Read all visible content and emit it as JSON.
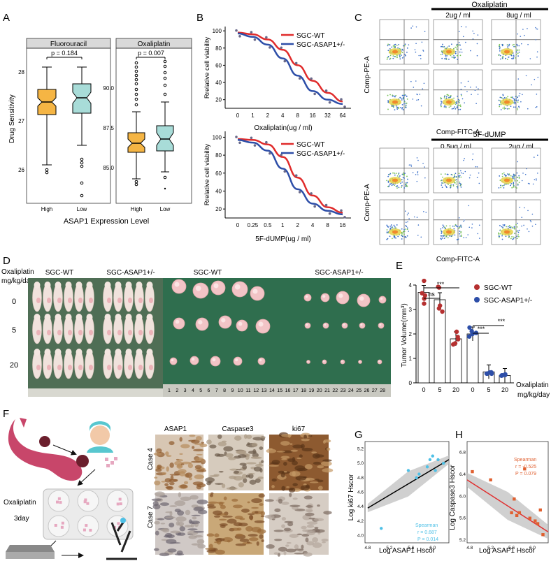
{
  "panels": {
    "A": {
      "letter": "A",
      "ylabel": "Drug Sensitivity",
      "xlabel": "ASAP1 Expression Level",
      "facets": [
        {
          "title": "Fluorouracil",
          "pvalue": "p = 0.184",
          "yticks": [
            "28",
            "27",
            "26"
          ]
        },
        {
          "title": "Oxaliplatin",
          "pvalue": "p = 0.007",
          "yticks": [
            "90.0",
            "87.5",
            "85.0"
          ]
        }
      ],
      "groups": [
        "High",
        "Low"
      ],
      "colors": {
        "high": "#f5b544",
        "low": "#a8dcd8"
      }
    },
    "B": {
      "letter": "B",
      "ylabel": "Rrelative cell viability",
      "legend": [
        "SGC-WT",
        "SGC-ASAP1+/-"
      ],
      "colors": {
        "wt": "#e02b2b",
        "asap": "#2d4ea8"
      },
      "top": {
        "xlabel": "Oxaliplatin(ug / ml)",
        "xticks": [
          "0",
          "1",
          "2",
          "4",
          "8",
          "16",
          "32",
          "64"
        ],
        "yticks": [
          "100",
          "80",
          "60",
          "40",
          "20"
        ]
      },
      "bottom": {
        "xlabel": "5F-dUMP(ug / ml)",
        "xticks": [
          "0",
          "0.25",
          "0.5",
          "1",
          "2",
          "4",
          "8",
          "16"
        ],
        "yticks": [
          "100",
          "80",
          "60",
          "40",
          "20"
        ]
      }
    },
    "C": {
      "letter": "C",
      "top_drug": "Oxaliplatin",
      "top_doses": [
        "2ug / ml",
        "8ug / ml"
      ],
      "bottom_drug": "5F-dUMP",
      "bottom_doses": [
        "0.5ug / ml",
        "2ug / ml"
      ],
      "ylabel": "Comp-PE-A",
      "xlabel": "Comp-FITC-A"
    },
    "D": {
      "letter": "D",
      "dose_label": "Oxaliplatin",
      "dose_unit": "mg/kg/day",
      "doses": [
        "0",
        "5",
        "20"
      ],
      "mice_labels": [
        "SGC-WT",
        "SGC-ASAP1+/-"
      ],
      "tumor_labels": [
        "SGC-WT",
        "SGC-ASAP1+/-"
      ],
      "ruler": [
        "1",
        "2",
        "3",
        "4",
        "5",
        "6",
        "7",
        "8",
        "9",
        "10",
        "11",
        "12",
        "13",
        "14",
        "15",
        "16",
        "17",
        "18",
        "19",
        "20",
        "21",
        "22",
        "23",
        "24",
        "25",
        "26",
        "27",
        "28"
      ]
    },
    "E": {
      "letter": "E",
      "ylabel": "Tumor Volume(mm³)",
      "yticks": [
        "0",
        "1",
        "2",
        "3",
        "4"
      ],
      "legend": [
        "SGC-WT",
        "SGC-ASAP1+/-"
      ],
      "xlabel": "Oxaliplatin",
      "xunit": "mg/kg/day",
      "sig": [
        "***",
        "ns",
        "***",
        "***"
      ]
    },
    "F": {
      "letter": "F",
      "treatment": "Oxaliplatin",
      "duration": "3day",
      "stains": [
        "ASAP1",
        "Caspase3",
        "ki67"
      ],
      "cases": [
        "Case 4",
        "Case 7"
      ]
    },
    "G": {
      "letter": "G",
      "ylabel": "Log ki67 Hscor",
      "xlabel": "Log ASAP1 Hscor",
      "stat": [
        "Spearman",
        "r = 0.687",
        "P = 0.014"
      ],
      "color": "#4ec0e6"
    },
    "H": {
      "letter": "H",
      "ylabel": "Log Caspase3 Hscor",
      "xlabel": "Log ASAP1 Hscor",
      "stat": [
        "Spearman",
        "r = -0.525",
        "P = 0.079"
      ],
      "color": "#e06030"
    }
  },
  "chart_data": [
    {
      "type": "box",
      "title": "Fluorouracil",
      "ylabel": "Drug Sensitivity",
      "categories": [
        "High",
        "Low"
      ],
      "series": [
        {
          "name": "High",
          "q1": 27.05,
          "median": 27.35,
          "q3": 27.6,
          "whisker_low": 26.3,
          "whisker_high": 28.1
        },
        {
          "name": "Low",
          "q1": 27.1,
          "median": 27.45,
          "q3": 27.75,
          "whisker_low": 26.5,
          "whisker_high": 28.1
        }
      ],
      "ylim": [
        25.8,
        28.3
      ],
      "annotation": "p = 0.184"
    },
    {
      "type": "box",
      "title": "Oxaliplatin",
      "ylabel": "Drug Sensitivity",
      "categories": [
        "High",
        "Low"
      ],
      "series": [
        {
          "name": "High",
          "q1": 86.2,
          "median": 86.7,
          "q3": 87.2,
          "whisker_low": 84.4,
          "whisker_high": 88.5
        },
        {
          "name": "Low",
          "q1": 86.4,
          "median": 86.9,
          "q3": 87.6,
          "whisker_low": 84.8,
          "whisker_high": 89.2
        }
      ],
      "ylim": [
        83.5,
        92.5
      ],
      "annotation": "p = 0.007"
    },
    {
      "type": "line",
      "xlabel": "Oxaliplatin(ug / ml)",
      "ylabel": "Rrelative cell viability",
      "categories": [
        "0",
        "1",
        "2",
        "4",
        "8",
        "16",
        "32",
        "64"
      ],
      "series": [
        {
          "name": "SGC-WT",
          "values": [
            98,
            96,
            90,
            78,
            60,
            42,
            28,
            18
          ]
        },
        {
          "name": "SGC-ASAP1+/-",
          "values": [
            97,
            93,
            84,
            68,
            48,
            30,
            20,
            15
          ]
        }
      ],
      "ylim": [
        10,
        105
      ]
    },
    {
      "type": "line",
      "xlabel": "5F-dUMP(ug / ml)",
      "ylabel": "Rrelative cell viability",
      "categories": [
        "0",
        "0.25",
        "0.5",
        "1",
        "2",
        "4",
        "8",
        "16"
      ],
      "series": [
        {
          "name": "SGC-WT",
          "values": [
            98,
            97,
            92,
            78,
            55,
            35,
            22,
            16
          ]
        },
        {
          "name": "SGC-ASAP1+/-",
          "values": [
            97,
            94,
            85,
            65,
            42,
            26,
            18,
            14
          ]
        }
      ],
      "ylim": [
        10,
        105
      ]
    },
    {
      "type": "bar",
      "xlabel": "Oxaliplatin",
      "ylabel": "Tumor Volume(mm³)",
      "categories": [
        "0",
        "5",
        "20"
      ],
      "series": [
        {
          "name": "SGC-WT",
          "values": [
            3.7,
            3.4,
            1.8
          ]
        },
        {
          "name": "SGC-ASAP1+/-",
          "values": [
            2.0,
            0.45,
            0.3
          ]
        }
      ],
      "ylim": [
        0,
        4
      ]
    },
    {
      "type": "scatter",
      "xlabel": "Log ASAP1 Hscor",
      "ylabel": "Log ki67 Hscor",
      "points": [
        [
          5.05,
          4.1
        ],
        [
          5.55,
          4.9
        ],
        [
          5.7,
          4.8
        ],
        [
          5.75,
          4.85
        ],
        [
          5.9,
          4.95
        ],
        [
          6.0,
          5.1
        ],
        [
          6.05,
          4.9
        ],
        [
          6.1,
          5.05
        ],
        [
          6.2,
          5.0
        ],
        [
          5.95,
          5.05
        ]
      ],
      "fit": [
        [
          4.8,
          4.38
        ],
        [
          6.3,
          5.05
        ]
      ],
      "xlim": [
        4.75,
        6.3
      ],
      "ylim": [
        3.9,
        5.3
      ]
    },
    {
      "type": "scatter",
      "xlabel": "Log ASAP1 Hscor",
      "ylabel": "Log Caspase3 Hscor",
      "points": [
        [
          4.85,
          6.45
        ],
        [
          5.2,
          6.3
        ],
        [
          5.6,
          5.7
        ],
        [
          5.65,
          5.95
        ],
        [
          5.7,
          5.65
        ],
        [
          5.75,
          5.7
        ],
        [
          5.85,
          6.5
        ],
        [
          5.95,
          5.6
        ],
        [
          6.05,
          5.55
        ],
        [
          6.1,
          5.5
        ],
        [
          6.15,
          5.75
        ],
        [
          6.2,
          5.3
        ]
      ],
      "fit": [
        [
          4.75,
          6.3
        ],
        [
          6.3,
          5.35
        ]
      ],
      "xlim": [
        4.75,
        6.3
      ],
      "ylim": [
        5.15,
        7.0
      ]
    }
  ]
}
